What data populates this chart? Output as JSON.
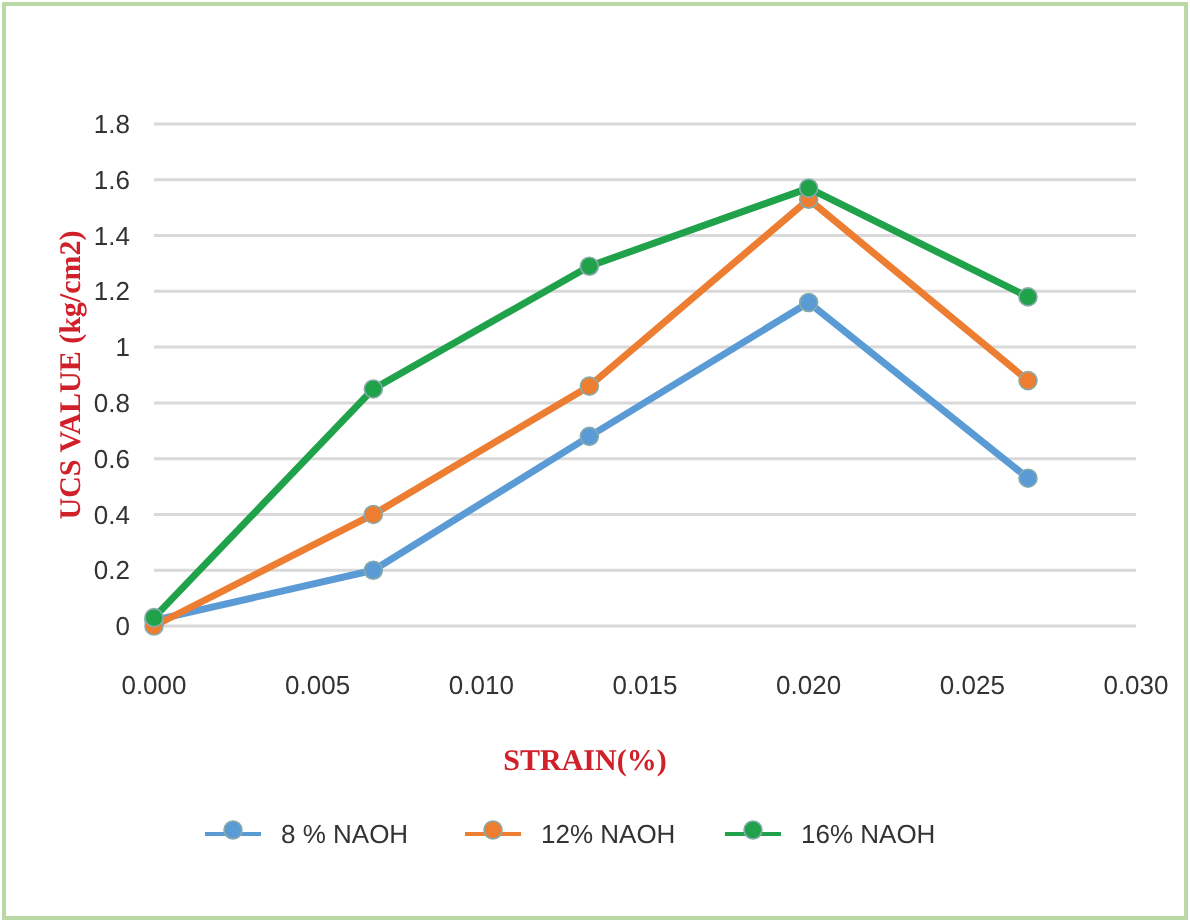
{
  "chart_data": {
    "type": "line",
    "xlabel": "STRAIN(%)",
    "ylabel": "UCS VALUE (kg/cm2)",
    "xlim": [
      0,
      0.03
    ],
    "xticks": [
      {
        "value": 0,
        "label": "0.000"
      },
      {
        "value": 0.005,
        "label": "0.005"
      },
      {
        "value": 0.01,
        "label": "0.010"
      },
      {
        "value": 0.015,
        "label": "0.015"
      },
      {
        "value": 0.02,
        "label": "0.020"
      },
      {
        "value": 0.025,
        "label": "0.025"
      },
      {
        "value": 0.03,
        "label": "0.030"
      }
    ],
    "ylim": [
      0,
      1.8
    ],
    "yticks": [
      0,
      0.2,
      0.4,
      0.6,
      0.8,
      1,
      1.2,
      1.4,
      1.6,
      1.8
    ],
    "x": [
      0,
      0.0067,
      0.0133,
      0.02,
      0.0267
    ],
    "series": [
      {
        "name": "8 % NAOH",
        "color": "#5b9bd5",
        "values": [
          0.02,
          0.2,
          0.68,
          1.16,
          0.53
        ]
      },
      {
        "name": "12% NAOH",
        "color": "#ed7d31",
        "values": [
          0,
          0.4,
          0.86,
          1.53,
          0.88
        ]
      },
      {
        "name": "16% NAOH",
        "color": "#1fa24a",
        "values": [
          0.03,
          0.85,
          1.29,
          1.57,
          1.18
        ]
      }
    ],
    "grid": "y",
    "legend": "bottom",
    "marker": "circle",
    "line_style": "solid"
  }
}
